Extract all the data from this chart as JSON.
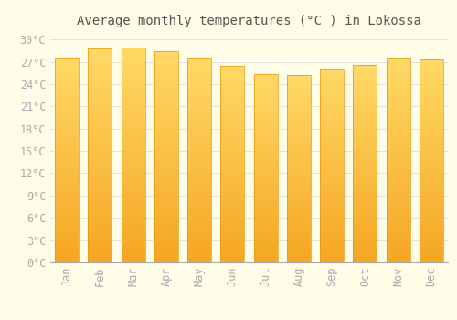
{
  "title": "Average monthly temperatures (°C ) in Lokossa",
  "months": [
    "Jan",
    "Feb",
    "Mar",
    "Apr",
    "May",
    "Jun",
    "Jul",
    "Aug",
    "Sep",
    "Oct",
    "Nov",
    "Dec"
  ],
  "values": [
    27.5,
    28.8,
    28.9,
    28.4,
    27.5,
    26.4,
    25.3,
    25.2,
    26.0,
    26.6,
    27.5,
    27.3
  ],
  "bar_color_bottom": "#F5A623",
  "bar_color_top": "#FFD966",
  "ylim": [
    0,
    31
  ],
  "ytick_step": 3,
  "background_color": "#FFFDE7",
  "grid_color": "#dddddd",
  "title_fontsize": 10,
  "tick_fontsize": 8.5,
  "tick_color": "#aaaaaa",
  "title_color": "#555555"
}
